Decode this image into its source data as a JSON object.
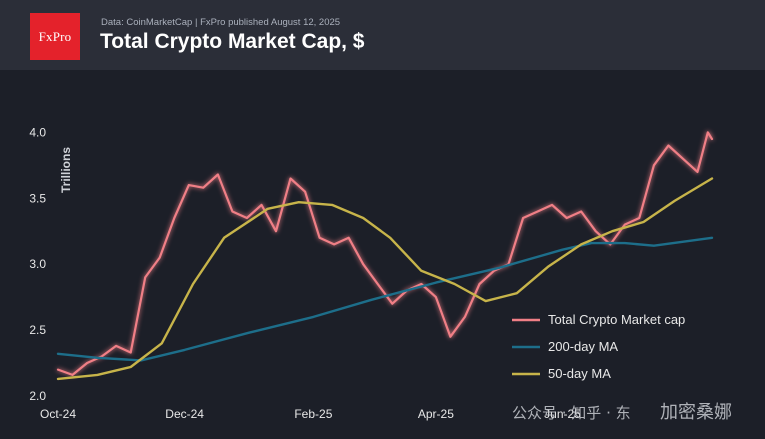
{
  "header": {
    "logo_text": "FxPro",
    "source_line": "Data: CoinMarketCap | FxPro published August 12, 2025",
    "title": "Total Crypto Market Cap, $"
  },
  "watermark": {
    "left_text": "公众号 · 知乎 · 东",
    "right_text": "加密桑娜"
  },
  "colors": {
    "market_cap": "#f07f86",
    "ma200": "#1d6e8a",
    "ma50": "#c7b44a",
    "logo_bg": "#e4222b"
  },
  "chart_data": {
    "type": "line",
    "title": "Total Crypto Market Cap, $",
    "ylabel": "Trillions",
    "xlabel": "",
    "ylim": [
      2.0,
      4.2
    ],
    "yticks": [
      "2.0",
      "2.5",
      "3.0",
      "3.5",
      "4.0"
    ],
    "xticks": [
      "Oct-24",
      "Dec-24",
      "Feb-25",
      "Apr-25",
      "Jun-25"
    ],
    "xtick_dates": [
      "2024-10-01",
      "2024-12-01",
      "2025-02-01",
      "2025-04-01",
      "2025-06-01"
    ],
    "x_range": [
      "2024-10-01",
      "2025-08-12"
    ],
    "grid": false,
    "legend_position": "bottom-right",
    "series": [
      {
        "name": "Total Crypto Market cap",
        "points": [
          [
            "2024-10-01",
            2.2
          ],
          [
            "2024-10-08",
            2.16
          ],
          [
            "2024-10-15",
            2.25
          ],
          [
            "2024-10-22",
            2.3
          ],
          [
            "2024-10-29",
            2.38
          ],
          [
            "2024-11-05",
            2.33
          ],
          [
            "2024-11-12",
            2.9
          ],
          [
            "2024-11-19",
            3.05
          ],
          [
            "2024-11-26",
            3.35
          ],
          [
            "2024-12-03",
            3.6
          ],
          [
            "2024-12-10",
            3.58
          ],
          [
            "2024-12-17",
            3.68
          ],
          [
            "2024-12-24",
            3.4
          ],
          [
            "2024-12-31",
            3.35
          ],
          [
            "2025-01-07",
            3.45
          ],
          [
            "2025-01-14",
            3.25
          ],
          [
            "2025-01-21",
            3.65
          ],
          [
            "2025-01-28",
            3.55
          ],
          [
            "2025-02-04",
            3.2
          ],
          [
            "2025-02-11",
            3.15
          ],
          [
            "2025-02-18",
            3.2
          ],
          [
            "2025-02-25",
            3.0
          ],
          [
            "2025-03-04",
            2.85
          ],
          [
            "2025-03-11",
            2.7
          ],
          [
            "2025-03-18",
            2.8
          ],
          [
            "2025-03-25",
            2.85
          ],
          [
            "2025-04-01",
            2.75
          ],
          [
            "2025-04-08",
            2.45
          ],
          [
            "2025-04-15",
            2.6
          ],
          [
            "2025-04-22",
            2.85
          ],
          [
            "2025-04-29",
            2.95
          ],
          [
            "2025-05-06",
            3.0
          ],
          [
            "2025-05-13",
            3.35
          ],
          [
            "2025-05-20",
            3.4
          ],
          [
            "2025-05-27",
            3.45
          ],
          [
            "2025-06-03",
            3.35
          ],
          [
            "2025-06-10",
            3.4
          ],
          [
            "2025-06-17",
            3.25
          ],
          [
            "2025-06-24",
            3.15
          ],
          [
            "2025-07-01",
            3.3
          ],
          [
            "2025-07-08",
            3.35
          ],
          [
            "2025-07-15",
            3.75
          ],
          [
            "2025-07-22",
            3.9
          ],
          [
            "2025-07-29",
            3.8
          ],
          [
            "2025-08-05",
            3.7
          ],
          [
            "2025-08-10",
            4.0
          ],
          [
            "2025-08-12",
            3.95
          ]
        ]
      },
      {
        "name": "200-day MA",
        "points": [
          [
            "2024-10-01",
            2.32
          ],
          [
            "2024-10-20",
            2.29
          ],
          [
            "2024-11-10",
            2.27
          ],
          [
            "2024-12-01",
            2.35
          ],
          [
            "2025-01-01",
            2.48
          ],
          [
            "2025-02-01",
            2.6
          ],
          [
            "2025-03-01",
            2.73
          ],
          [
            "2025-04-01",
            2.86
          ],
          [
            "2025-05-01",
            2.97
          ],
          [
            "2025-06-01",
            3.11
          ],
          [
            "2025-06-15",
            3.16
          ],
          [
            "2025-07-01",
            3.16
          ],
          [
            "2025-07-15",
            3.14
          ],
          [
            "2025-08-12",
            3.2
          ]
        ]
      },
      {
        "name": "50-day MA",
        "points": [
          [
            "2024-10-01",
            2.13
          ],
          [
            "2024-10-20",
            2.16
          ],
          [
            "2024-11-05",
            2.22
          ],
          [
            "2024-11-20",
            2.4
          ],
          [
            "2024-12-05",
            2.85
          ],
          [
            "2024-12-20",
            3.2
          ],
          [
            "2025-01-10",
            3.42
          ],
          [
            "2025-01-25",
            3.47
          ],
          [
            "2025-02-10",
            3.45
          ],
          [
            "2025-02-25",
            3.35
          ],
          [
            "2025-03-10",
            3.2
          ],
          [
            "2025-03-25",
            2.95
          ],
          [
            "2025-04-10",
            2.85
          ],
          [
            "2025-04-25",
            2.72
          ],
          [
            "2025-05-10",
            2.78
          ],
          [
            "2025-05-25",
            2.98
          ],
          [
            "2025-06-10",
            3.15
          ],
          [
            "2025-06-25",
            3.25
          ],
          [
            "2025-07-10",
            3.32
          ],
          [
            "2025-07-25",
            3.48
          ],
          [
            "2025-08-12",
            3.65
          ]
        ]
      }
    ]
  }
}
